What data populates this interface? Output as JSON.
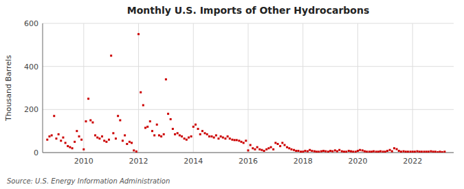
{
  "chart_data": {
    "type": "scatter",
    "title": "Monthly U.S. Imports of Other Hydrocarbons",
    "ylabel": "Thousand Barrels",
    "annotation": "Source: U.S. Energy Information Administration",
    "color": "#cc0000",
    "grid": true,
    "xlim": [
      2008.5,
      2023.5
    ],
    "xticks": [
      2010,
      2012,
      2014,
      2016,
      2018,
      2020,
      2022
    ],
    "ylim": [
      0,
      600
    ],
    "yticks": [
      0,
      200,
      400,
      600
    ],
    "x": [
      2008.67,
      2008.75,
      2008.83,
      2008.92,
      2009.0,
      2009.08,
      2009.17,
      2009.25,
      2009.33,
      2009.42,
      2009.5,
      2009.58,
      2009.67,
      2009.75,
      2009.83,
      2009.92,
      2010.0,
      2010.08,
      2010.17,
      2010.25,
      2010.33,
      2010.42,
      2010.5,
      2010.58,
      2010.67,
      2010.75,
      2010.83,
      2010.92,
      2011.0,
      2011.08,
      2011.17,
      2011.25,
      2011.33,
      2011.42,
      2011.5,
      2011.58,
      2011.67,
      2011.75,
      2011.83,
      2011.92,
      2012.0,
      2012.08,
      2012.17,
      2012.25,
      2012.33,
      2012.42,
      2012.5,
      2012.58,
      2012.67,
      2012.75,
      2012.83,
      2012.92,
      2013.0,
      2013.08,
      2013.17,
      2013.25,
      2013.33,
      2013.42,
      2013.5,
      2013.58,
      2013.67,
      2013.75,
      2013.83,
      2013.92,
      2014.0,
      2014.08,
      2014.17,
      2014.25,
      2014.33,
      2014.42,
      2014.5,
      2014.58,
      2014.67,
      2014.75,
      2014.83,
      2014.92,
      2015.0,
      2015.08,
      2015.17,
      2015.25,
      2015.33,
      2015.42,
      2015.5,
      2015.58,
      2015.67,
      2015.75,
      2015.83,
      2015.92,
      2016.0,
      2016.08,
      2016.17,
      2016.25,
      2016.33,
      2016.42,
      2016.5,
      2016.58,
      2016.67,
      2016.75,
      2016.83,
      2016.92,
      2017.0,
      2017.08,
      2017.17,
      2017.25,
      2017.33,
      2017.42,
      2017.5,
      2017.58,
      2017.67,
      2017.75,
      2017.83,
      2017.92,
      2018.0,
      2018.08,
      2018.17,
      2018.25,
      2018.33,
      2018.42,
      2018.5,
      2018.58,
      2018.67,
      2018.75,
      2018.83,
      2018.92,
      2019.0,
      2019.08,
      2019.17,
      2019.25,
      2019.33,
      2019.42,
      2019.5,
      2019.58,
      2019.67,
      2019.75,
      2019.83,
      2019.92,
      2020.0,
      2020.08,
      2020.17,
      2020.25,
      2020.33,
      2020.42,
      2020.5,
      2020.58,
      2020.67,
      2020.75,
      2020.83,
      2020.92,
      2021.0,
      2021.08,
      2021.17,
      2021.25,
      2021.33,
      2021.42,
      2021.5,
      2021.58,
      2021.67,
      2021.75,
      2021.83,
      2021.92,
      2022.0,
      2022.08,
      2022.17,
      2022.25,
      2022.33,
      2022.42,
      2022.5,
      2022.58,
      2022.67,
      2022.75,
      2022.83,
      2022.92,
      2023.0,
      2023.08,
      2023.17
    ],
    "values": [
      60,
      75,
      80,
      170,
      65,
      85,
      55,
      70,
      45,
      30,
      25,
      20,
      50,
      100,
      75,
      60,
      15,
      145,
      250,
      150,
      140,
      80,
      70,
      65,
      75,
      55,
      50,
      60,
      450,
      90,
      65,
      170,
      150,
      55,
      80,
      40,
      50,
      45,
      10,
      5,
      550,
      280,
      220,
      115,
      120,
      145,
      100,
      80,
      130,
      80,
      75,
      85,
      340,
      180,
      155,
      110,
      85,
      90,
      80,
      75,
      65,
      60,
      70,
      75,
      120,
      130,
      110,
      85,
      100,
      90,
      85,
      75,
      75,
      70,
      80,
      65,
      75,
      70,
      65,
      75,
      65,
      60,
      58,
      58,
      55,
      50,
      45,
      55,
      10,
      35,
      20,
      15,
      25,
      15,
      12,
      8,
      15,
      20,
      25,
      15,
      45,
      40,
      30,
      45,
      35,
      25,
      20,
      15,
      12,
      8,
      8,
      4,
      4,
      8,
      6,
      12,
      8,
      6,
      4,
      4,
      6,
      8,
      6,
      4,
      8,
      6,
      10,
      6,
      12,
      6,
      4,
      4,
      8,
      6,
      4,
      4,
      8,
      12,
      10,
      6,
      4,
      4,
      4,
      6,
      4,
      4,
      6,
      4,
      4,
      8,
      12,
      6,
      20,
      16,
      8,
      4,
      6,
      4,
      4,
      4,
      4,
      4,
      6,
      4,
      4,
      4,
      4,
      4,
      6,
      4,
      4,
      2,
      4,
      2,
      4
    ]
  }
}
